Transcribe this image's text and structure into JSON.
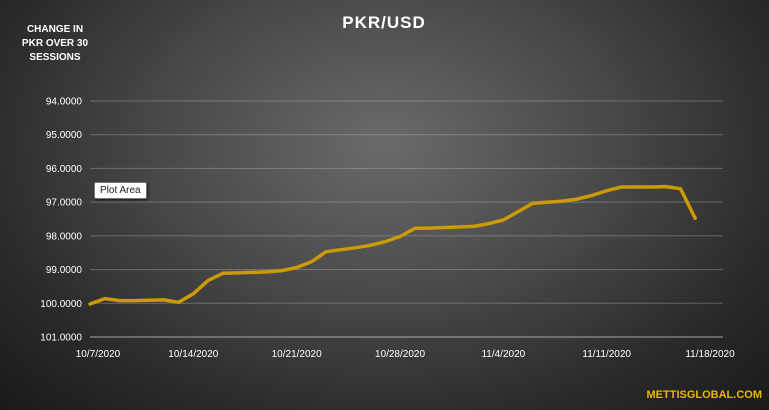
{
  "chart_data": {
    "type": "line",
    "title": "PKR/USD",
    "side_label": [
      "CHANGE IN",
      "PKR OVER 30",
      "SESSIONS"
    ],
    "y_ticks": [
      "94.0000",
      "95.0000",
      "96.0000",
      "97.0000",
      "98.0000",
      "99.0000",
      "100.0000",
      "101.0000"
    ],
    "ylim": [
      101,
      94
    ],
    "y_reversed": true,
    "x_ticks": [
      "10/7/2020",
      "10/14/2020",
      "10/21/2020",
      "10/28/2020",
      "11/4/2020",
      "11/11/2020",
      "11/18/2020"
    ],
    "x_tick_days": [
      0,
      7,
      14,
      21,
      28,
      35,
      42
    ],
    "grid": true,
    "series": [
      {
        "name": "",
        "color": "#cc9a06",
        "x_days": [
          0,
          1,
          2,
          3,
          5,
          6,
          7,
          8,
          9,
          10,
          12,
          13,
          14,
          15,
          16,
          18,
          19,
          20,
          21,
          22,
          23,
          26,
          27,
          28,
          29,
          30,
          32,
          33,
          34,
          35,
          36,
          37,
          38,
          39,
          40,
          41
        ],
        "values": [
          100.02,
          99.86,
          99.92,
          99.92,
          99.9,
          99.97,
          99.72,
          99.32,
          99.11,
          99.1,
          99.07,
          99.03,
          98.94,
          98.77,
          98.47,
          98.35,
          98.28,
          98.17,
          98.02,
          97.78,
          97.77,
          97.72,
          97.64,
          97.53,
          97.28,
          97.03,
          96.97,
          96.91,
          96.8,
          96.66,
          96.55,
          96.55,
          96.55,
          96.54,
          96.6,
          97.48
        ]
      }
    ]
  },
  "tooltip": {
    "label": "Plot Area"
  },
  "watermark": {
    "text": "METTISGLOBAL.COM",
    "color": "#e8b800"
  }
}
